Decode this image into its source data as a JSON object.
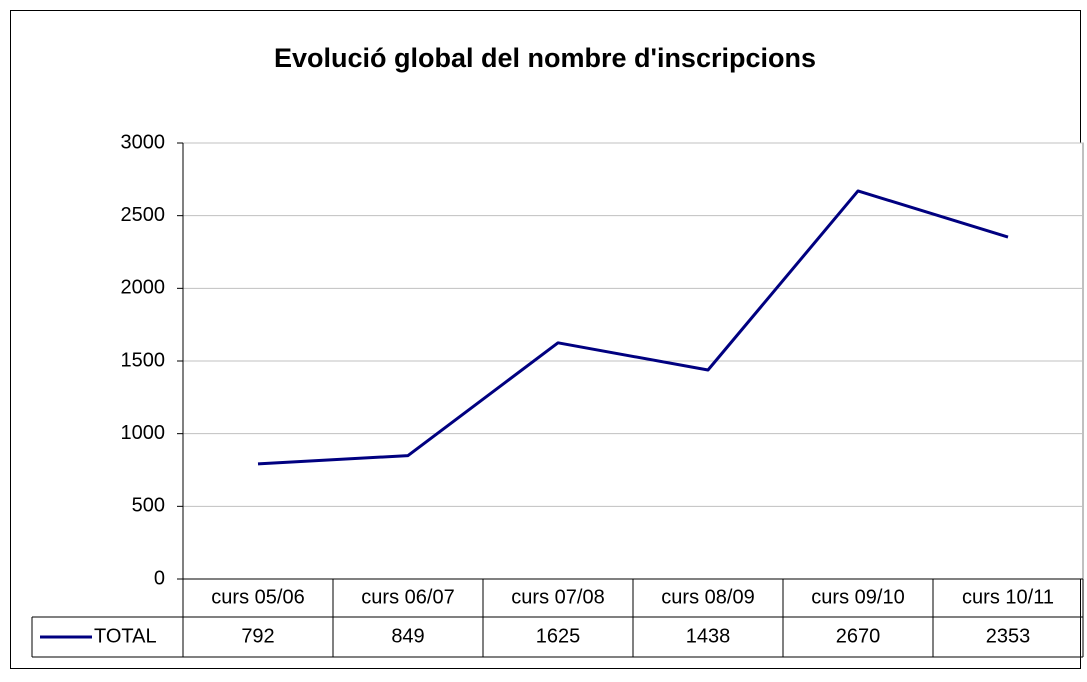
{
  "chart_data": {
    "type": "line",
    "title": "Evolució global del nombre d'inscripcions",
    "categories": [
      "curs 05/06",
      "curs 06/07",
      "curs 07/08",
      "curs 08/09",
      "curs 09/10",
      "curs 10/11"
    ],
    "series": [
      {
        "name": "TOTAL",
        "color": "#000080",
        "values": [
          792,
          849,
          1625,
          1438,
          2670,
          2353
        ]
      }
    ],
    "ylim": [
      0,
      3000
    ],
    "yticks": [
      0,
      500,
      1000,
      1500,
      2000,
      2500,
      3000
    ],
    "grid": true,
    "data_table": true
  }
}
